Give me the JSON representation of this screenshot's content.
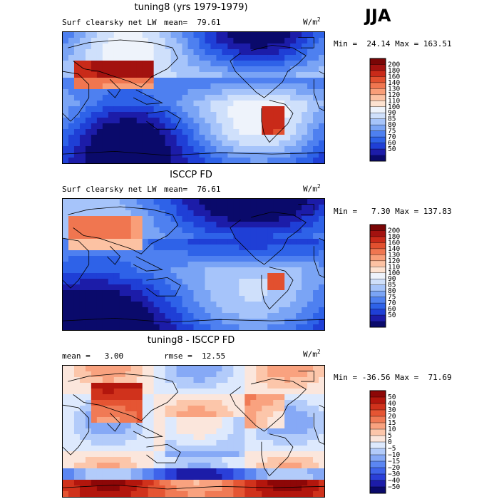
{
  "season": "JJA",
  "panels": [
    {
      "id": "model",
      "title": "tuning8 (yrs 1979-1979)",
      "left_label": "Surf clearsky net LW",
      "stat_label": "mean=  79.61",
      "units": "W/m",
      "units_sup": "2",
      "minmax": "Min =  24.14 Max = 163.51",
      "palette": [
        "#0a0a6b",
        "#1c1ca8",
        "#1f3fd6",
        "#2e62e8",
        "#4e80f0",
        "#7aa4f5",
        "#a6c4fa",
        "#cfe0fb",
        "#eef3fb",
        "#fde2d0",
        "#fcc2a3",
        "#f99e78",
        "#f07650",
        "#e2502f",
        "#c92a19",
        "#a3120f",
        "#7a0606"
      ],
      "levels": [
        "200",
        "180",
        "160",
        "140",
        "130",
        "120",
        "110",
        "100",
        "90",
        "85",
        "80",
        "75",
        "70",
        "60",
        "50"
      ]
    },
    {
      "id": "obs",
      "title": "ISCCP FD",
      "left_label": "Surf clearsky net LW",
      "stat_label": "mean=  76.61",
      "units": "W/m",
      "units_sup": "2",
      "minmax": "Min =   7.30 Max = 137.83",
      "palette": [
        "#0a0a6b",
        "#1c1ca8",
        "#1f3fd6",
        "#2e62e8",
        "#4e80f0",
        "#7aa4f5",
        "#a6c4fa",
        "#cfe0fb",
        "#eef3fb",
        "#fde2d0",
        "#fcc2a3",
        "#f99e78",
        "#f07650",
        "#e2502f",
        "#c92a19",
        "#a3120f",
        "#7a0606"
      ],
      "levels": [
        "200",
        "180",
        "160",
        "140",
        "130",
        "120",
        "110",
        "100",
        "90",
        "85",
        "80",
        "75",
        "70",
        "60",
        "50"
      ]
    },
    {
      "id": "diff",
      "title": "tuning8 - ISCCP FD",
      "left_label": "mean =   3.00",
      "stat_label": "rmse =  12.55",
      "units": "W/m",
      "units_sup": "2",
      "minmax": "Min = -36.56 Max =  71.69",
      "palette": [
        "#0a0a6b",
        "#1c1ca8",
        "#2a3fd8",
        "#3e63ea",
        "#5b86f2",
        "#86a9f6",
        "#b2cbfa",
        "#dde9fd",
        "#fbe6dc",
        "#fcc6aa",
        "#f9a27f",
        "#f07a55",
        "#e55533",
        "#d0321c",
        "#b3160d",
        "#8d0707"
      ],
      "levels": [
        "50",
        "40",
        "30",
        "20",
        "15",
        "10",
        "5",
        "0",
        "−5",
        "−10",
        "−15",
        "−20",
        "−30",
        "−40",
        "−50"
      ]
    }
  ]
}
